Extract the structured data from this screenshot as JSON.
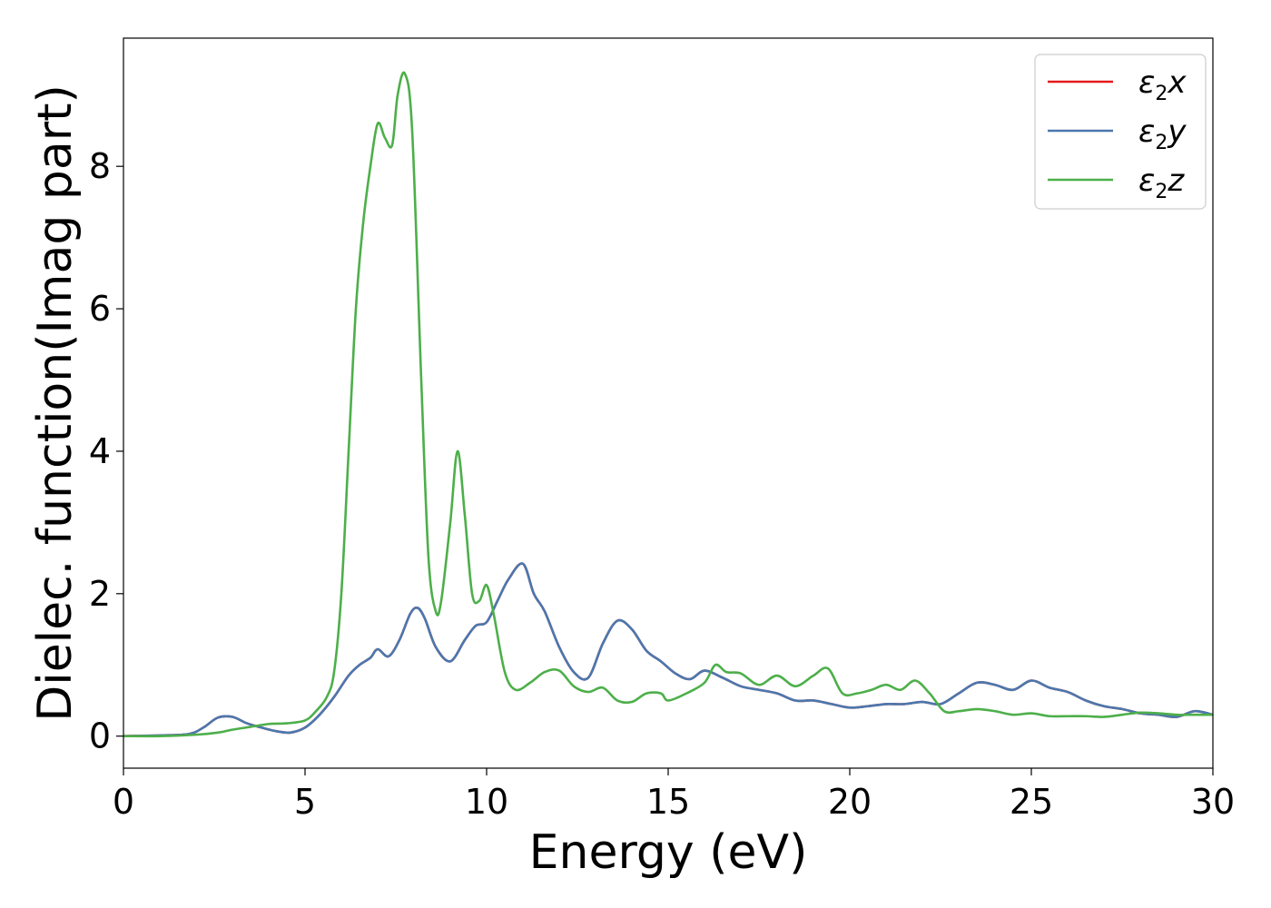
{
  "chart_data": {
    "type": "line",
    "title": "",
    "xlabel": "Energy (eV)",
    "ylabel": "Dielec. function(Imag part)",
    "xlim": [
      0,
      30
    ],
    "ylim": [
      -0.45,
      9.8
    ],
    "xticks": [
      0,
      5,
      10,
      15,
      20,
      25,
      30
    ],
    "yticks": [
      0,
      2,
      4,
      6,
      8
    ],
    "grid": false,
    "legend_position": "top-right",
    "series": [
      {
        "name": "ε2x",
        "legend": {
          "base": "ε",
          "sub": "2",
          "axis": "x"
        },
        "color": "#e41a1c",
        "x": [
          0,
          1,
          1.8,
          2.2,
          2.6,
          3.0,
          3.4,
          3.8,
          4.2,
          4.6,
          5.0,
          5.4,
          5.8,
          6.2,
          6.5,
          6.8,
          7.0,
          7.3,
          7.6,
          7.9,
          8.1,
          8.3,
          8.6,
          9.0,
          9.4,
          9.7,
          10.0,
          10.3,
          10.6,
          11.0,
          11.3,
          11.6,
          12.0,
          12.4,
          12.8,
          13.2,
          13.6,
          14.0,
          14.4,
          14.8,
          15.2,
          15.6,
          16.0,
          16.5,
          17.0,
          17.5,
          18.0,
          18.5,
          19.0,
          19.5,
          20.0,
          20.5,
          21.0,
          21.5,
          22.0,
          22.5,
          23.0,
          23.5,
          24.0,
          24.5,
          25.0,
          25.5,
          26.0,
          26.5,
          27.0,
          27.5,
          28.0,
          28.5,
          29.0,
          29.5,
          30.0
        ],
        "y": [
          0.0,
          0.01,
          0.03,
          0.12,
          0.26,
          0.27,
          0.18,
          0.12,
          0.07,
          0.05,
          0.12,
          0.3,
          0.55,
          0.85,
          1.0,
          1.1,
          1.22,
          1.12,
          1.35,
          1.72,
          1.8,
          1.65,
          1.25,
          1.05,
          1.35,
          1.55,
          1.6,
          1.9,
          2.2,
          2.42,
          2.0,
          1.75,
          1.25,
          0.9,
          0.82,
          1.3,
          1.62,
          1.5,
          1.2,
          1.05,
          0.88,
          0.8,
          0.92,
          0.82,
          0.7,
          0.65,
          0.6,
          0.5,
          0.5,
          0.45,
          0.4,
          0.42,
          0.45,
          0.45,
          0.48,
          0.45,
          0.6,
          0.75,
          0.72,
          0.65,
          0.78,
          0.68,
          0.62,
          0.5,
          0.42,
          0.38,
          0.32,
          0.3,
          0.27,
          0.35,
          0.3
        ]
      },
      {
        "name": "ε2y",
        "legend": {
          "base": "ε",
          "sub": "2",
          "axis": "y"
        },
        "color": "#4a78ae",
        "x": [
          0,
          1,
          1.8,
          2.2,
          2.6,
          3.0,
          3.4,
          3.8,
          4.2,
          4.6,
          5.0,
          5.4,
          5.8,
          6.2,
          6.5,
          6.8,
          7.0,
          7.3,
          7.6,
          7.9,
          8.1,
          8.3,
          8.6,
          9.0,
          9.4,
          9.7,
          10.0,
          10.3,
          10.6,
          11.0,
          11.3,
          11.6,
          12.0,
          12.4,
          12.8,
          13.2,
          13.6,
          14.0,
          14.4,
          14.8,
          15.2,
          15.6,
          16.0,
          16.5,
          17.0,
          17.5,
          18.0,
          18.5,
          19.0,
          19.5,
          20.0,
          20.5,
          21.0,
          21.5,
          22.0,
          22.5,
          23.0,
          23.5,
          24.0,
          24.5,
          25.0,
          25.5,
          26.0,
          26.5,
          27.0,
          27.5,
          28.0,
          28.5,
          29.0,
          29.5,
          30.0
        ],
        "y": [
          0.0,
          0.01,
          0.03,
          0.12,
          0.26,
          0.27,
          0.18,
          0.12,
          0.07,
          0.05,
          0.12,
          0.3,
          0.55,
          0.85,
          1.0,
          1.1,
          1.22,
          1.12,
          1.35,
          1.72,
          1.8,
          1.65,
          1.25,
          1.05,
          1.35,
          1.55,
          1.6,
          1.9,
          2.2,
          2.42,
          2.0,
          1.75,
          1.25,
          0.9,
          0.82,
          1.3,
          1.62,
          1.5,
          1.2,
          1.05,
          0.88,
          0.8,
          0.92,
          0.82,
          0.7,
          0.65,
          0.6,
          0.5,
          0.5,
          0.45,
          0.4,
          0.42,
          0.45,
          0.45,
          0.48,
          0.45,
          0.6,
          0.75,
          0.72,
          0.65,
          0.78,
          0.68,
          0.62,
          0.5,
          0.42,
          0.38,
          0.32,
          0.3,
          0.27,
          0.35,
          0.3
        ]
      },
      {
        "name": "ε2z",
        "legend": {
          "base": "ε",
          "sub": "2",
          "axis": "z"
        },
        "color": "#4daf4a",
        "x": [
          0,
          1,
          2,
          2.6,
          3.0,
          3.5,
          4.0,
          4.5,
          5.0,
          5.3,
          5.6,
          5.8,
          6.0,
          6.2,
          6.4,
          6.6,
          6.8,
          7.0,
          7.2,
          7.4,
          7.55,
          7.75,
          7.95,
          8.2,
          8.4,
          8.6,
          8.75,
          9.0,
          9.2,
          9.4,
          9.6,
          9.8,
          10.0,
          10.2,
          10.5,
          10.8,
          11.2,
          11.6,
          12.0,
          12.4,
          12.8,
          13.2,
          13.6,
          14.0,
          14.4,
          14.8,
          15.0,
          15.5,
          16.0,
          16.3,
          16.6,
          17.0,
          17.5,
          18.0,
          18.5,
          19.0,
          19.4,
          19.8,
          20.2,
          20.6,
          21.0,
          21.4,
          21.8,
          22.2,
          22.6,
          23.0,
          23.5,
          24.0,
          24.5,
          25.0,
          25.5,
          26.0,
          26.5,
          27.0,
          27.5,
          28.0,
          28.5,
          29.0,
          29.5,
          30.0
        ],
        "y": [
          0.0,
          0.0,
          0.02,
          0.05,
          0.09,
          0.13,
          0.17,
          0.18,
          0.22,
          0.35,
          0.55,
          0.9,
          2.0,
          4.0,
          6.0,
          7.2,
          8.0,
          8.6,
          8.4,
          8.3,
          9.0,
          9.3,
          8.5,
          5.0,
          2.5,
          1.75,
          1.9,
          3.0,
          4.0,
          3.1,
          2.0,
          1.9,
          2.12,
          1.7,
          0.9,
          0.65,
          0.75,
          0.9,
          0.92,
          0.7,
          0.62,
          0.68,
          0.5,
          0.48,
          0.6,
          0.6,
          0.5,
          0.6,
          0.75,
          1.0,
          0.9,
          0.88,
          0.72,
          0.85,
          0.7,
          0.85,
          0.95,
          0.6,
          0.6,
          0.65,
          0.72,
          0.65,
          0.78,
          0.6,
          0.35,
          0.35,
          0.38,
          0.35,
          0.3,
          0.32,
          0.28,
          0.28,
          0.28,
          0.27,
          0.3,
          0.33,
          0.32,
          0.3,
          0.3,
          0.3
        ]
      }
    ]
  }
}
